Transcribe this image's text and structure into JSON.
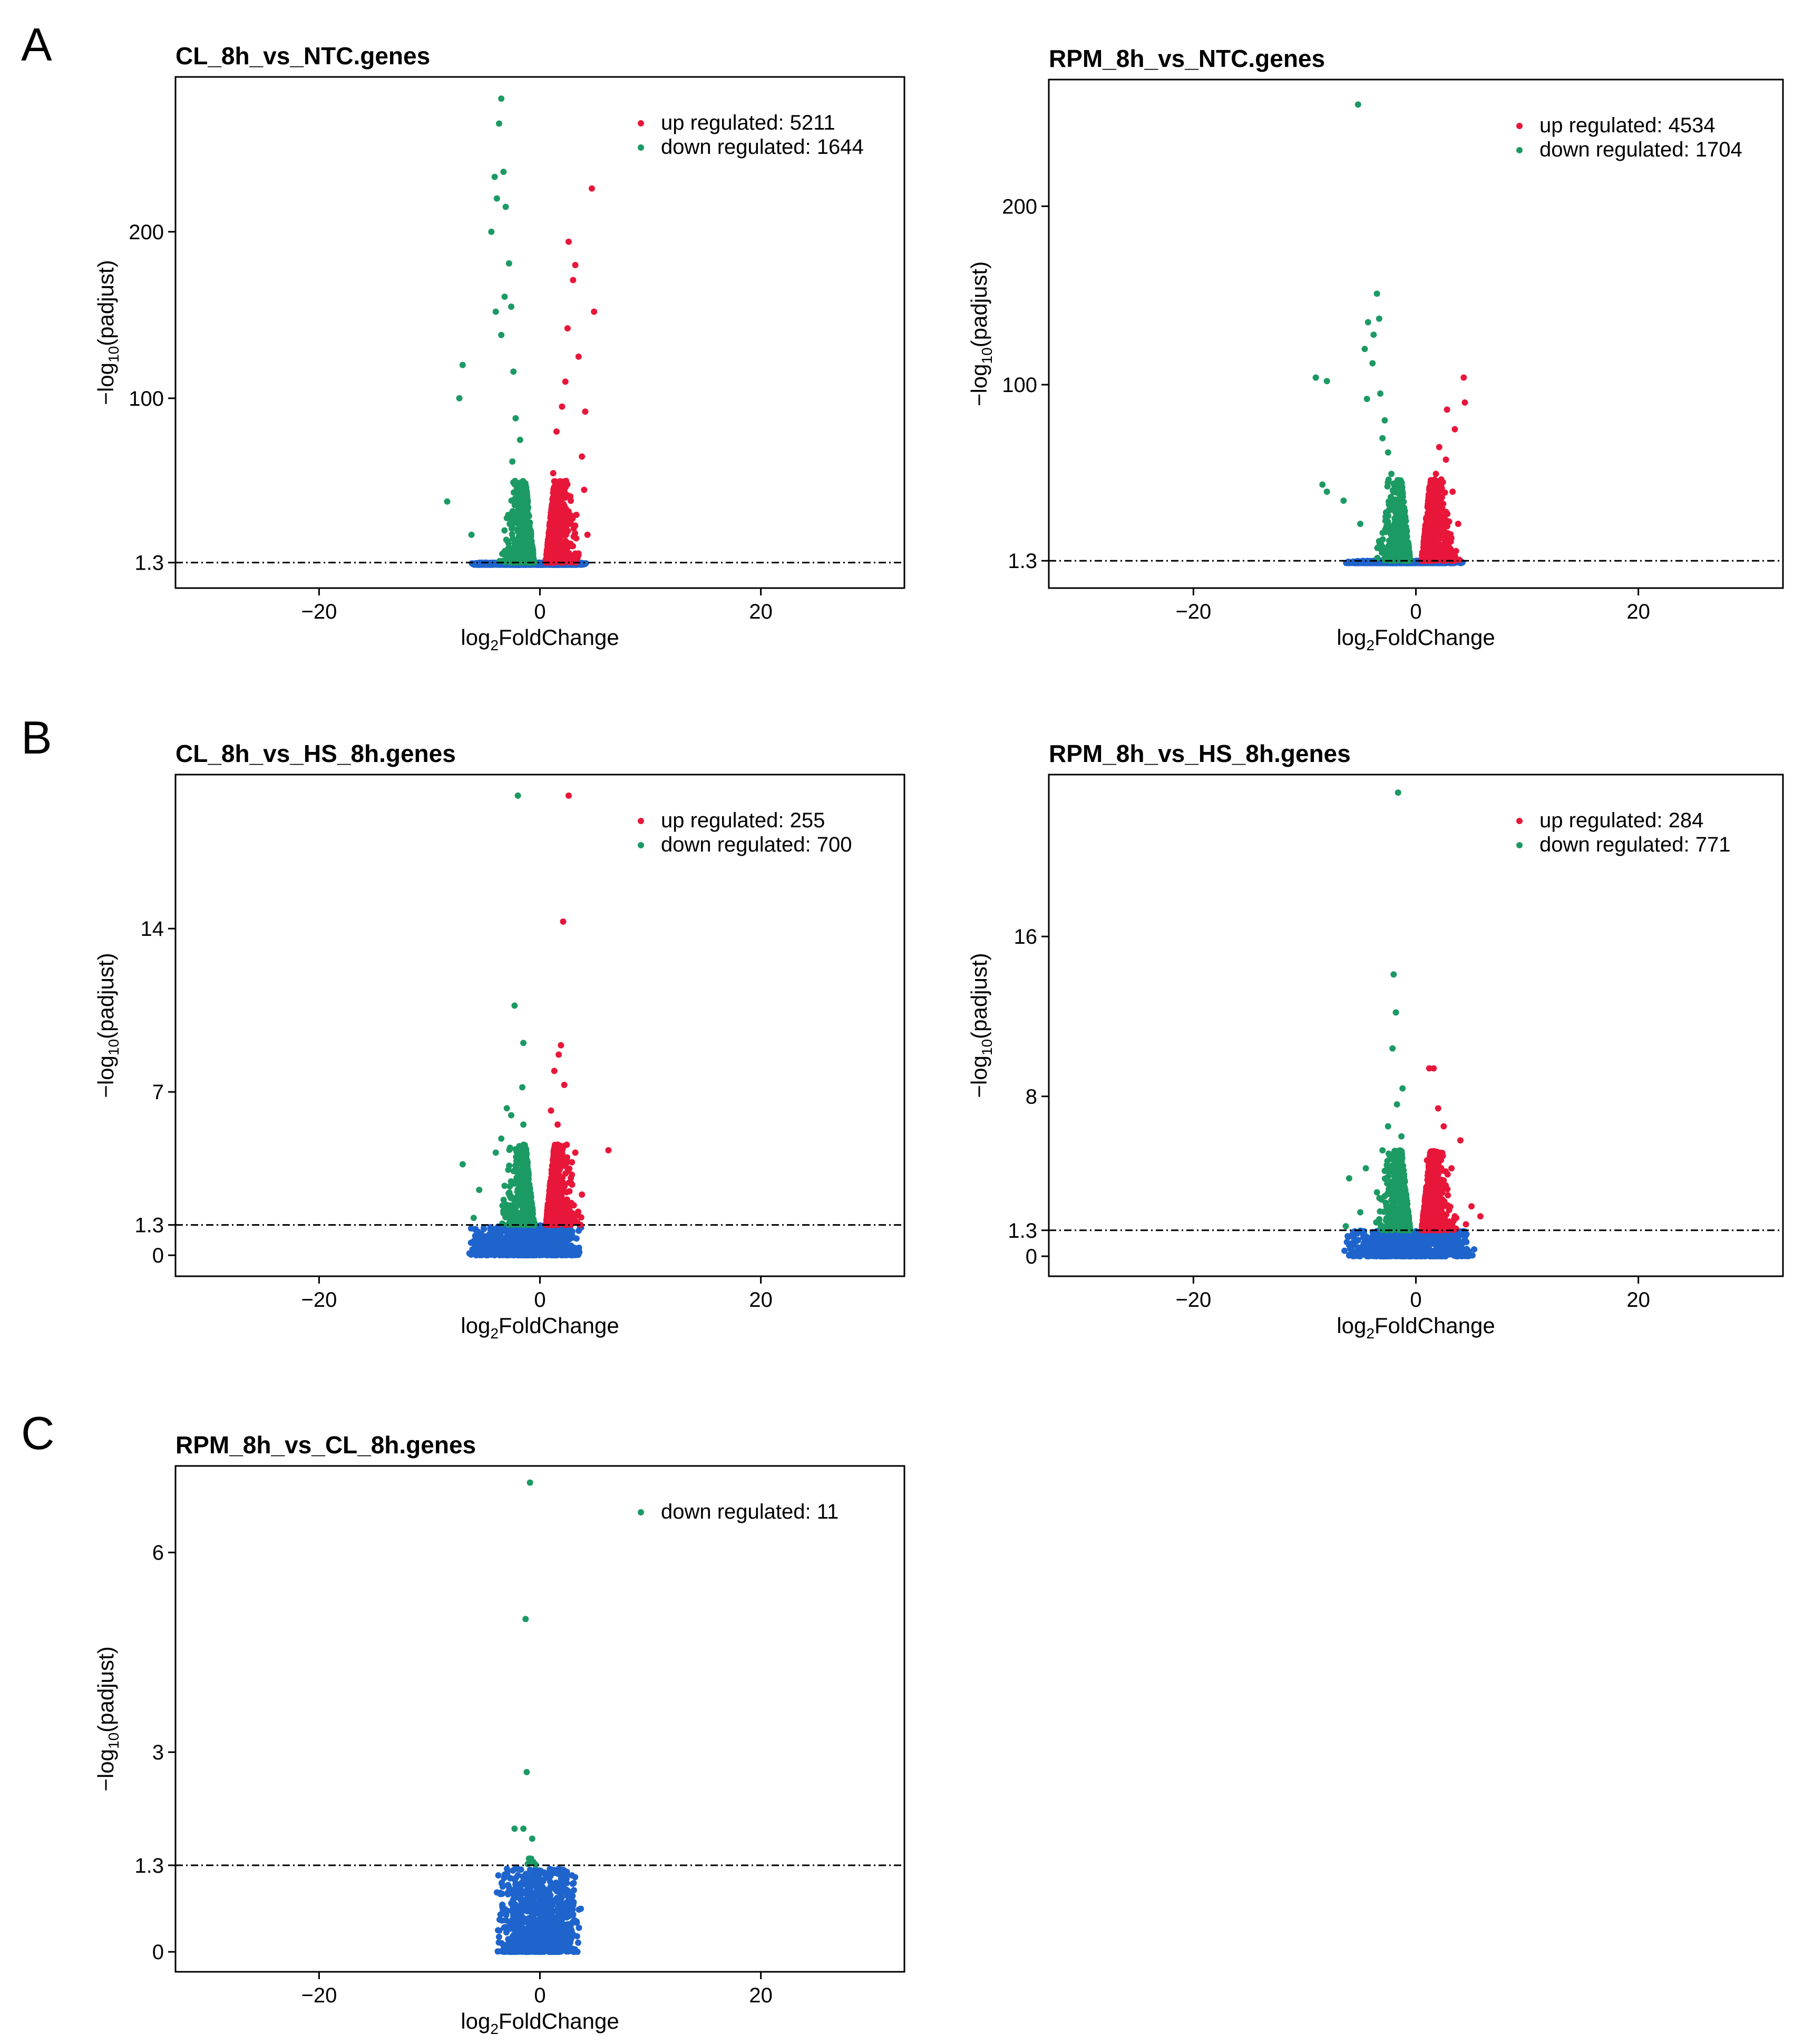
{
  "panel_letters": [
    "A",
    "B",
    "C"
  ],
  "colors": {
    "up": "#e8173a",
    "down": "#1c9a64",
    "none": "#1e64cc",
    "threshold": "#000000"
  },
  "chart_data": [
    {
      "type": "scatter",
      "title": "CL_8h_vs_NTC.genes",
      "xlabel": "log2FoldChange",
      "ylabel": "−log10(padjust)",
      "xlim": [
        -33,
        33
      ],
      "ylim": [
        -14,
        293
      ],
      "xticks": [
        "−20",
        "0",
        "20"
      ],
      "xtick_values": [
        -20,
        0,
        20
      ],
      "yticks": [
        "1.3",
        "100",
        "200"
      ],
      "ytick_values": [
        1.3,
        100,
        200
      ],
      "threshold": 1.3,
      "legend_position": "top-right",
      "legend": [
        {
          "key": "up",
          "label": "up regulated: 5211"
        },
        {
          "key": "down",
          "label": "down regulated: 1644"
        }
      ],
      "series": [
        {
          "name": "up",
          "points": [
            [
              4.7,
              226
            ],
            [
              2.6,
              194
            ],
            [
              3.2,
              180
            ],
            [
              3.0,
              171
            ],
            [
              4.9,
              152
            ],
            [
              2.5,
              142
            ],
            [
              3.5,
              125
            ],
            [
              2.3,
              110
            ],
            [
              2.0,
              95
            ],
            [
              4.1,
              92
            ],
            [
              1.5,
              80
            ],
            [
              3.8,
              65
            ],
            [
              1.2,
              55
            ],
            [
              4.0,
              45
            ],
            [
              1.8,
              38
            ],
            [
              3.3,
              30
            ],
            [
              1.1,
              22
            ],
            [
              4.3,
              18
            ],
            [
              2.7,
              12
            ],
            [
              0.9,
              8
            ]
          ]
        },
        {
          "name": "down",
          "points": [
            [
              -3.5,
              280
            ],
            [
              -3.7,
              265
            ],
            [
              -3.3,
              236
            ],
            [
              -4.1,
              233
            ],
            [
              -3.1,
              215
            ],
            [
              -3.9,
              220
            ],
            [
              -4.4,
              200
            ],
            [
              -2.8,
              181
            ],
            [
              -3.2,
              161
            ],
            [
              -2.6,
              155
            ],
            [
              -4.0,
              152
            ],
            [
              -3.5,
              138
            ],
            [
              -7.0,
              120
            ],
            [
              -2.4,
              116
            ],
            [
              -7.3,
              100
            ],
            [
              -2.2,
              88
            ],
            [
              -1.8,
              75
            ],
            [
              -2.5,
              62
            ],
            [
              -8.4,
              38
            ],
            [
              -1.5,
              45
            ],
            [
              -3.0,
              28
            ],
            [
              -6.2,
              18
            ],
            [
              -1.2,
              12
            ],
            [
              -2.2,
              6
            ]
          ]
        },
        {
          "name": "none",
          "x_range": [
            -6.5,
            4.5
          ],
          "y_max": 1.3
        }
      ]
    },
    {
      "type": "scatter",
      "title": "RPM_8h_vs_NTC.genes",
      "xlabel": "log2FoldChange",
      "ylabel": "−log10(padjust)",
      "xlim": [
        -33,
        33
      ],
      "ylim": [
        -14,
        271
      ],
      "xticks": [
        "−20",
        "0",
        "20"
      ],
      "xtick_values": [
        -20,
        0,
        20
      ],
      "yticks": [
        "1.3",
        "100",
        "200"
      ],
      "ytick_values": [
        1.3,
        100,
        200
      ],
      "threshold": 1.3,
      "legend_position": "top-right",
      "legend": [
        {
          "key": "up",
          "label": "up regulated: 4534"
        },
        {
          "key": "down",
          "label": "down regulated: 1704"
        }
      ],
      "series": [
        {
          "name": "up",
          "points": [
            [
              4.3,
              104
            ],
            [
              4.4,
              90
            ],
            [
              2.8,
              86
            ],
            [
              3.5,
              75
            ],
            [
              2.1,
              65
            ],
            [
              2.7,
              58
            ],
            [
              1.8,
              50
            ],
            [
              3.3,
              40
            ],
            [
              1.5,
              30
            ],
            [
              3.8,
              22
            ],
            [
              1.0,
              15
            ],
            [
              2.5,
              10
            ],
            [
              0.8,
              5
            ]
          ]
        },
        {
          "name": "down",
          "points": [
            [
              -5.2,
              257
            ],
            [
              -3.5,
              151
            ],
            [
              -3.3,
              137
            ],
            [
              -4.3,
              135
            ],
            [
              -3.8,
              128
            ],
            [
              -4.6,
              120
            ],
            [
              -3.9,
              112
            ],
            [
              -9.0,
              104
            ],
            [
              -8.0,
              102
            ],
            [
              -3.2,
              95
            ],
            [
              -4.4,
              92
            ],
            [
              -2.8,
              80
            ],
            [
              -3.0,
              70
            ],
            [
              -2.5,
              62
            ],
            [
              -8.4,
              44
            ],
            [
              -8.0,
              40
            ],
            [
              -2.2,
              50
            ],
            [
              -6.5,
              35
            ],
            [
              -1.8,
              28
            ],
            [
              -5.0,
              22
            ],
            [
              -1.2,
              12
            ],
            [
              -2.0,
              6
            ]
          ]
        },
        {
          "name": "none",
          "x_range": [
            -6.5,
            4.5
          ],
          "y_max": 1.3
        }
      ]
    },
    {
      "type": "scatter",
      "title": "CL_8h_vs_HS_8h.genes",
      "xlabel": "log2FoldChange",
      "ylabel": "−log10(padjust)",
      "xlim": [
        -33,
        33
      ],
      "ylim": [
        -0.9,
        20.6
      ],
      "xticks": [
        "−20",
        "0",
        "20"
      ],
      "xtick_values": [
        -20,
        0,
        20
      ],
      "yticks": [
        "0",
        "1.3",
        "7",
        "14"
      ],
      "ytick_values": [
        0,
        1.3,
        7,
        14
      ],
      "threshold": 1.3,
      "legend_position": "top-right",
      "legend": [
        {
          "key": "up",
          "label": "up regulated: 255"
        },
        {
          "key": "down",
          "label": "down regulated: 700"
        }
      ],
      "series": [
        {
          "name": "up",
          "points": [
            [
              2.6,
              19.7
            ],
            [
              2.1,
              14.3
            ],
            [
              1.9,
              9.0
            ],
            [
              1.7,
              8.6
            ],
            [
              1.3,
              7.9
            ],
            [
              2.2,
              7.3
            ],
            [
              1.0,
              6.2
            ],
            [
              1.6,
              5.6
            ],
            [
              6.2,
              4.5
            ],
            [
              3.2,
              4.4
            ],
            [
              2.3,
              3.5
            ],
            [
              1.0,
              3.0
            ],
            [
              3.8,
              2.6
            ],
            [
              0.8,
              2.2
            ],
            [
              1.5,
              1.7
            ],
            [
              2.9,
              1.5
            ]
          ]
        },
        {
          "name": "down",
          "points": [
            [
              -2.0,
              19.7
            ],
            [
              -2.3,
              10.7
            ],
            [
              -1.5,
              9.1
            ],
            [
              -1.6,
              7.2
            ],
            [
              -3.0,
              6.3
            ],
            [
              -2.6,
              6.0
            ],
            [
              -1.5,
              5.6
            ],
            [
              -3.5,
              5.0
            ],
            [
              -7.0,
              3.9
            ],
            [
              -4.0,
              4.4
            ],
            [
              -2.0,
              3.5
            ],
            [
              -5.5,
              2.8
            ],
            [
              -1.4,
              2.5
            ],
            [
              -6.0,
              1.6
            ],
            [
              -3.3,
              1.8
            ],
            [
              -1.2,
              1.5
            ]
          ]
        },
        {
          "name": "none",
          "x_range": [
            -6.5,
            4.0
          ],
          "y_max": 1.3
        }
      ]
    },
    {
      "type": "scatter",
      "title": "RPM_8h_vs_HS_8h.genes",
      "xlabel": "log2FoldChange",
      "ylabel": "−log10(padjust)",
      "xlim": [
        -33,
        33
      ],
      "ylim": [
        -1.0,
        24.1
      ],
      "xticks": [
        "−20",
        "0",
        "20"
      ],
      "xtick_values": [
        -20,
        0,
        20
      ],
      "yticks": [
        "0",
        "1.3",
        "8",
        "16"
      ],
      "ytick_values": [
        0,
        1.3,
        8,
        16
      ],
      "threshold": 1.3,
      "legend_position": "top-right",
      "legend": [
        {
          "key": "up",
          "label": "up regulated: 284"
        },
        {
          "key": "down",
          "label": "down regulated: 771"
        }
      ],
      "series": [
        {
          "name": "up",
          "points": [
            [
              1.2,
              9.4
            ],
            [
              1.6,
              9.4
            ],
            [
              2.0,
              7.4
            ],
            [
              2.5,
              6.5
            ],
            [
              4.0,
              5.8
            ],
            [
              1.7,
              5.2
            ],
            [
              1.0,
              4.8
            ],
            [
              3.2,
              4.4
            ],
            [
              2.5,
              3.8
            ],
            [
              5.0,
              2.5
            ],
            [
              3.5,
              2.0
            ],
            [
              5.8,
              2.0
            ],
            [
              1.2,
              1.8
            ],
            [
              4.5,
              1.6
            ],
            [
              2.0,
              1.5
            ]
          ]
        },
        {
          "name": "down",
          "points": [
            [
              -1.6,
              23.2
            ],
            [
              -2.0,
              14.1
            ],
            [
              -1.8,
              12.2
            ],
            [
              -2.1,
              10.4
            ],
            [
              -1.2,
              8.4
            ],
            [
              -1.7,
              7.6
            ],
            [
              -2.5,
              6.5
            ],
            [
              -1.3,
              6.0
            ],
            [
              -3.0,
              5.3
            ],
            [
              -4.5,
              4.4
            ],
            [
              -1.8,
              4.0
            ],
            [
              -6.0,
              3.9
            ],
            [
              -3.5,
              3.2
            ],
            [
              -2.2,
              2.8
            ],
            [
              -5.0,
              2.2
            ],
            [
              -6.3,
              1.5
            ],
            [
              -1.1,
              1.7
            ]
          ]
        },
        {
          "name": "none",
          "x_range": [
            -6.5,
            5.5
          ],
          "y_max": 1.3
        }
      ]
    },
    {
      "type": "scatter",
      "title": "RPM_8h_vs_CL_8h.genes",
      "xlabel": "log2FoldChange",
      "ylabel": "−log10(padjust)",
      "xlim": [
        -33,
        33
      ],
      "ylim": [
        -0.3,
        7.3
      ],
      "xticks": [
        "−20",
        "0",
        "20"
      ],
      "xtick_values": [
        -20,
        0,
        20
      ],
      "yticks": [
        "0",
        "1.3",
        "3",
        "6"
      ],
      "ytick_values": [
        0,
        1.3,
        3,
        6
      ],
      "threshold": 1.3,
      "legend_position": "top-right",
      "legend": [
        {
          "key": "down",
          "label": "down regulated: 11"
        }
      ],
      "series": [
        {
          "name": "down",
          "points": [
            [
              -0.9,
              7.05
            ],
            [
              -1.3,
              5.0
            ],
            [
              -1.2,
              2.7
            ],
            [
              -2.3,
              1.85
            ],
            [
              -1.5,
              1.85
            ],
            [
              -0.7,
              1.7
            ],
            [
              -0.8,
              1.4
            ],
            [
              -1.0,
              1.4
            ],
            [
              -0.6,
              1.35
            ],
            [
              -1.1,
              1.32
            ],
            [
              -0.4,
              1.31
            ]
          ]
        },
        {
          "name": "none",
          "x_range": [
            -4.0,
            3.8
          ],
          "y_max": 1.25
        }
      ]
    }
  ]
}
